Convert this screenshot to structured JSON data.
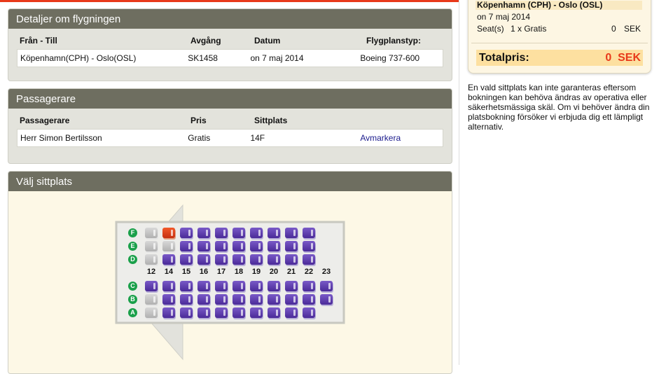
{
  "flight": {
    "title": "Detaljer om flygningen",
    "headers": [
      "Från - Till",
      "Avgång",
      "Datum",
      "Flygplanstyp:"
    ],
    "row": [
      "Köpenhamn(CPH) - Oslo(OSL)",
      "SK1458",
      "on 7 maj 2014",
      "Boeing 737-600"
    ]
  },
  "passengers": {
    "title": "Passagerare",
    "headers": [
      "Passagerare",
      "Pris",
      "Sittplats"
    ],
    "row": {
      "name": "Herr Simon Bertilsson",
      "price": "Gratis",
      "seat": "14F",
      "action": "Avmarkera"
    }
  },
  "seatmap": {
    "title": "Välj sittplats",
    "columns": [
      "12",
      "14",
      "15",
      "16",
      "17",
      "18",
      "19",
      "20",
      "21",
      "22",
      "23"
    ],
    "rows_upper": [
      {
        "letter": "F",
        "seats": "xsoooooooo-"
      },
      {
        "letter": "E",
        "seats": "xxoooooooo-"
      },
      {
        "letter": "D",
        "seats": "xooooooooo-"
      }
    ],
    "rows_lower": [
      {
        "letter": "C",
        "seats": "ooooooooooo"
      },
      {
        "letter": "B",
        "seats": "xoooooooooo"
      },
      {
        "letter": "A",
        "seats": "xooooooooo-"
      }
    ],
    "legend_codes": {
      "o": "available",
      "x": "unavailable",
      "s": "selected",
      "-": "none"
    },
    "colors": {
      "available": "#5a3aa8",
      "unavailable": "#c0c0c0",
      "selected": "#e04020",
      "row_label": "#1aa04a"
    }
  },
  "summary": {
    "route": "Köpenhamn (CPH) - Oslo (OSL)",
    "date": "on 7 maj 2014",
    "seat_label": "Seat(s)",
    "seat_desc": "1 x Gratis",
    "seat_price": "0",
    "seat_currency": "SEK",
    "total_label": "Totalpris:",
    "total_value": "0  SEK",
    "total_color": "#e8391a"
  },
  "note": "En vald sittplats kan inte garanteras eftersom bokningen kan behöva ändras av operativa eller säkerhetsmässiga skäl. Om vi behöver ändra din platsbokning försöker vi erbjuda dig ett lämpligt alternativ.",
  "accent": "#e8391a"
}
